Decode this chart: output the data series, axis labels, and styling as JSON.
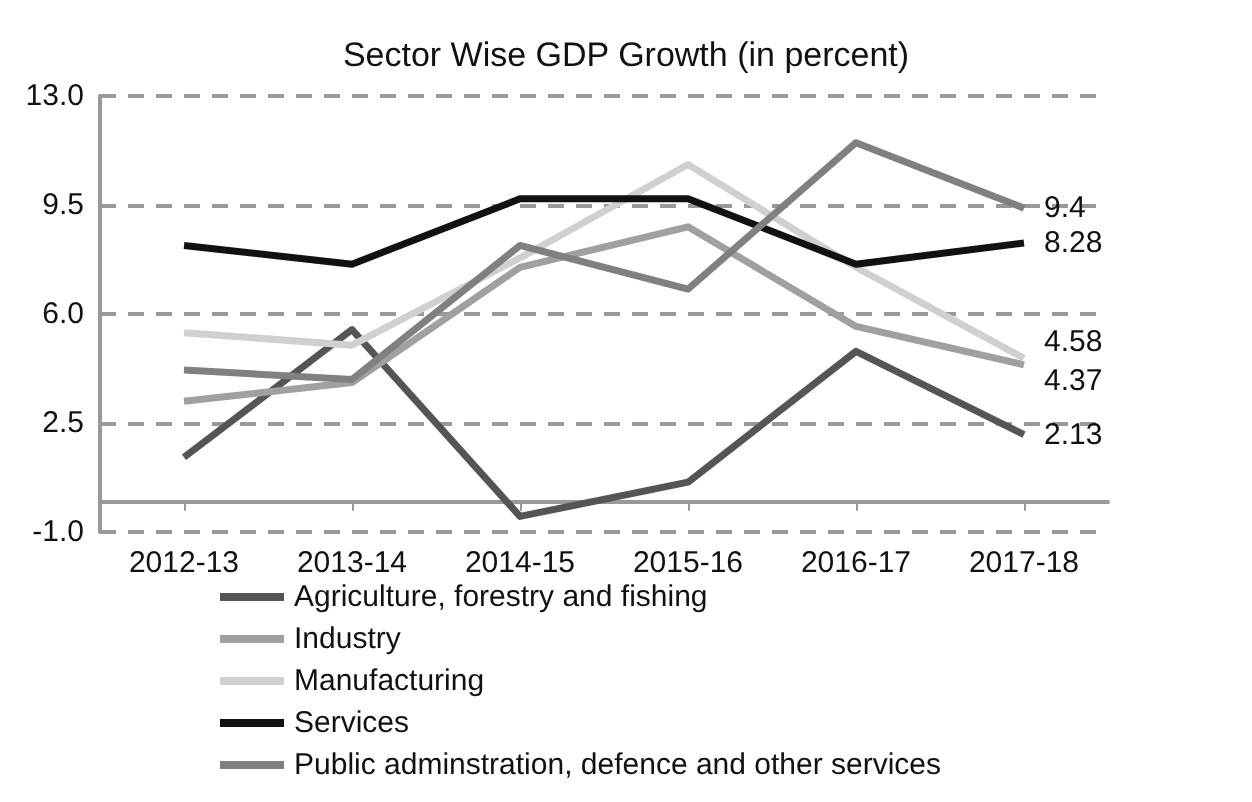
{
  "chart_data": {
    "type": "line",
    "title": "Sector Wise GDP Growth (in percent)",
    "categories": [
      "2012-13",
      "2013-14",
      "2014-15",
      "2015-16",
      "2016-17",
      "2017-18"
    ],
    "series": [
      {
        "name": "Agriculture, forestry and fishing",
        "color": "#555555",
        "values": [
          1.4,
          5.5,
          -0.5,
          0.6,
          4.8,
          2.13
        ],
        "value_labels": [
          null,
          null,
          null,
          null,
          null,
          "2.13"
        ]
      },
      {
        "name": "Industry",
        "color": "#a0a0a0",
        "values": [
          3.2,
          3.8,
          7.5,
          8.8,
          5.6,
          4.37
        ],
        "value_labels": [
          null,
          null,
          null,
          null,
          null,
          "4.37"
        ]
      },
      {
        "name": "Manufacturing",
        "color": "#d0d0d0",
        "values": [
          5.4,
          5.0,
          7.8,
          10.8,
          7.5,
          4.58
        ],
        "value_labels": [
          null,
          null,
          null,
          null,
          null,
          "4.58"
        ]
      },
      {
        "name": "Services",
        "color": "#111111",
        "values": [
          8.2,
          7.6,
          9.7,
          9.7,
          7.6,
          8.28
        ],
        "value_labels": [
          null,
          null,
          null,
          null,
          null,
          "8.28"
        ]
      },
      {
        "name": "Public adminstration, defence and other services",
        "color": "#808080",
        "values": [
          4.2,
          3.9,
          8.2,
          6.8,
          11.5,
          9.4
        ],
        "value_labels": [
          null,
          null,
          null,
          null,
          null,
          "9.4"
        ]
      }
    ],
    "ylim": [
      -1,
      13
    ],
    "yticks": [
      {
        "value": -1,
        "label": "-1.0"
      },
      2.5,
      {
        "value": 6,
        "label": "6.0"
      },
      9.5,
      {
        "value": 13,
        "label": "13.0"
      }
    ],
    "grid": "y",
    "legend": "bottom",
    "marker": "none",
    "line_style": "solid"
  }
}
